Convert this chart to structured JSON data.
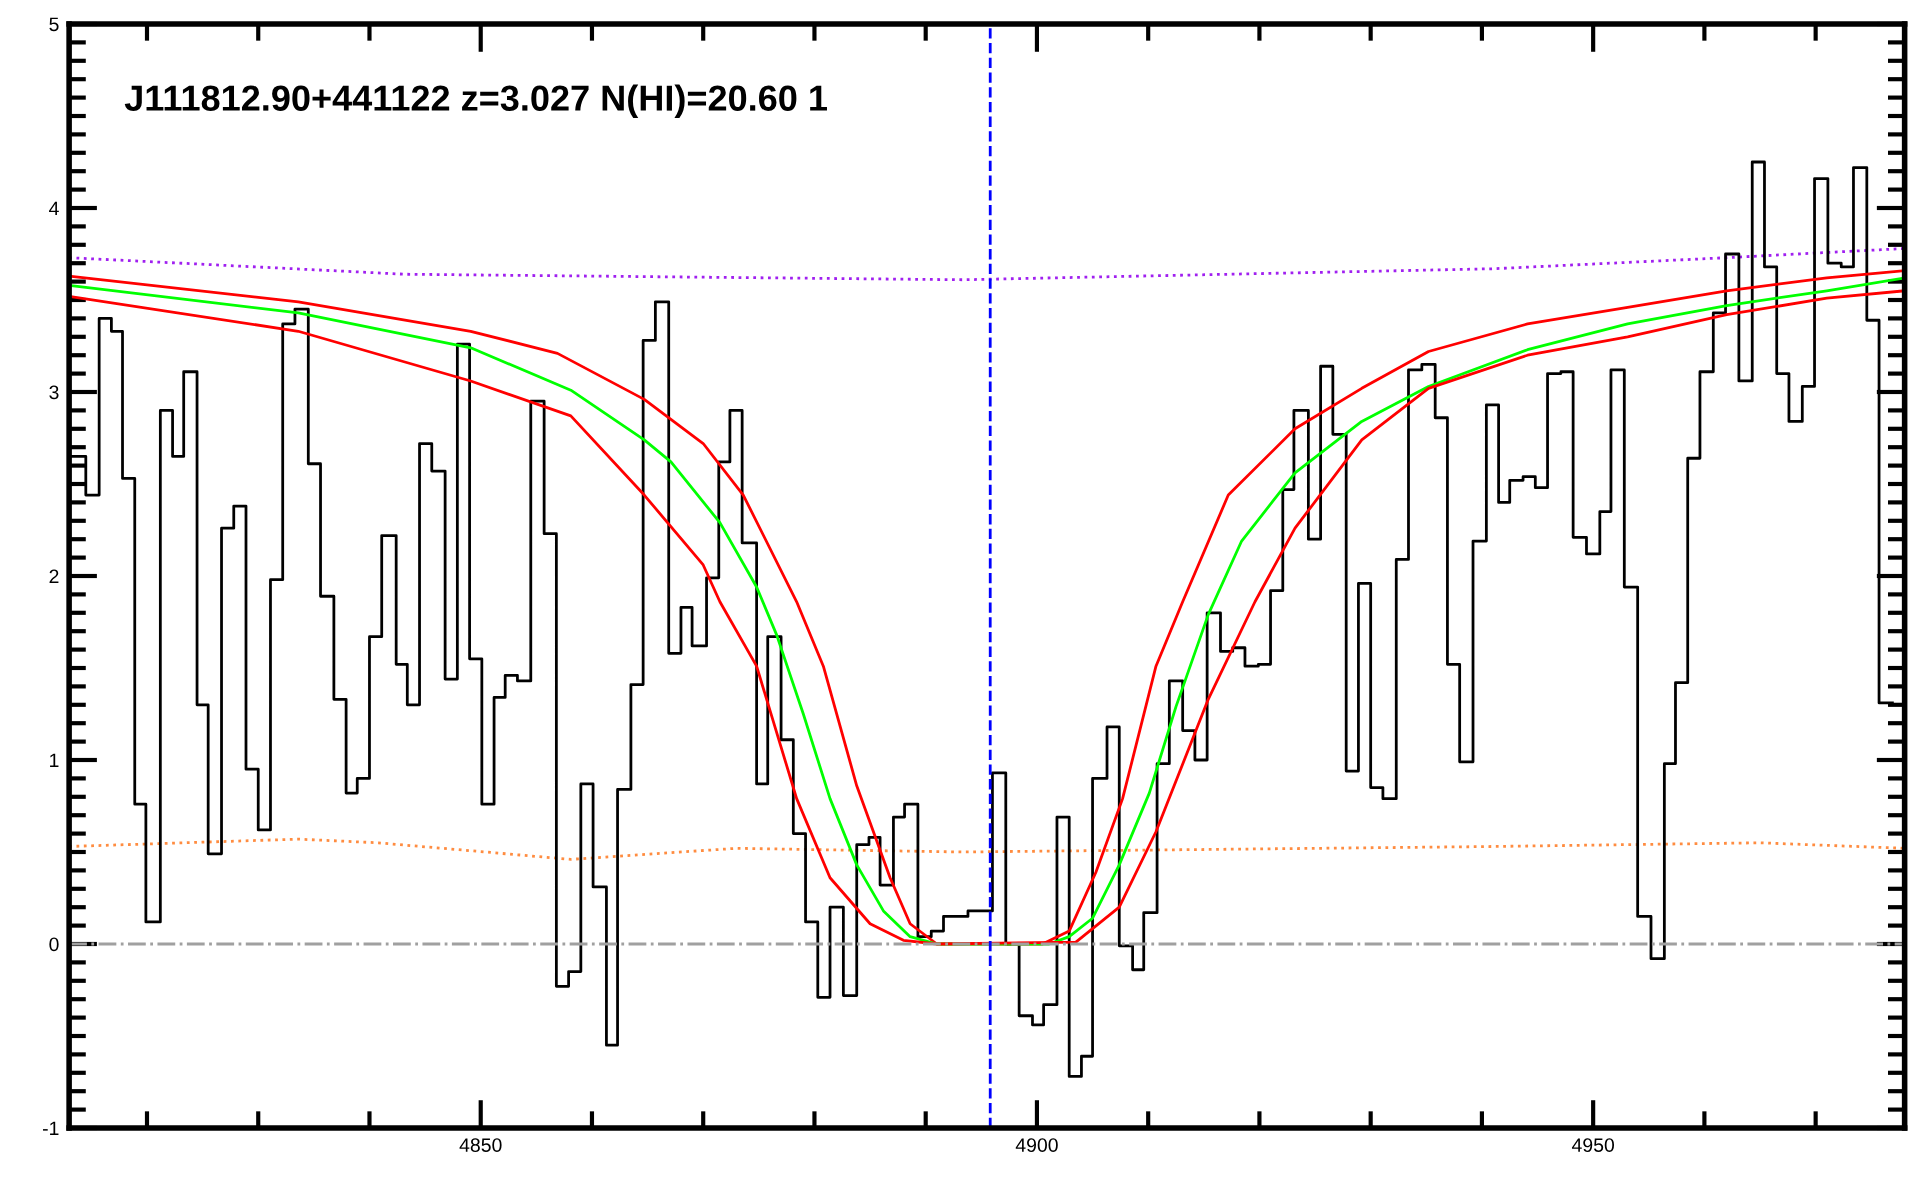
{
  "chart_data": {
    "type": "step",
    "title": "J111812.90+441122 z=3.027 N(HI)=20.60 1",
    "xlim": [
      4813,
      4978
    ],
    "xticks": [
      4850,
      4900,
      4950
    ],
    "ylim": [
      -1,
      5
    ],
    "yticks": [
      -1,
      0,
      1,
      2,
      3,
      4,
      5
    ],
    "grid": false,
    "legend": false,
    "tick_labels": "xy",
    "series": [
      {
        "type": "line",
        "color": "#a020f0",
        "line_style": "dotted",
        "x": [
          4813.0,
          4843.2,
          4893.3,
          4941.1,
          4962.0,
          4978.0
        ],
        "values": [
          3.73,
          3.64,
          3.61,
          3.67,
          3.73,
          3.78
        ]
      },
      {
        "type": "line",
        "color": "#ff8c40",
        "line_style": "dotted",
        "x": [
          4813.0,
          4833.6,
          4840.8,
          4858.1,
          4873.0,
          4893.3,
          4941.1,
          4965.0,
          4978.0
        ],
        "values": [
          0.53,
          0.57,
          0.55,
          0.46,
          0.52,
          0.5,
          0.53,
          0.55,
          0.52
        ]
      },
      {
        "color": "#000000",
        "line_style": "solid",
        "x": [
          4813.0,
          4814.5,
          4815.7,
          4816.8,
          4817.8,
          4818.9,
          4819.9,
          4821.2,
          4822.3,
          4823.3,
          4824.5,
          4825.5,
          4826.7,
          4827.8,
          4828.9,
          4830.0,
          4831.1,
          4832.2,
          4833.3,
          4834.5,
          4835.6,
          4836.8,
          4837.9,
          4838.9,
          4840.0,
          4841.1,
          4842.4,
          4843.4,
          4844.5,
          4845.6,
          4846.8,
          4847.9,
          4849.0,
          4850.1,
          4851.2,
          4852.2,
          4853.3,
          4854.5,
          4855.7,
          4856.8,
          4857.9,
          4859.0,
          4860.1,
          4861.3,
          4862.3,
          4863.5,
          4864.6,
          4865.7,
          4866.9,
          4868.0,
          4869.0,
          4870.3,
          4871.4,
          4872.4,
          4873.5,
          4874.8,
          4875.8,
          4877.0,
          4878.1,
          4879.2,
          4880.3,
          4881.4,
          4882.6,
          4883.8,
          4884.9,
          4885.9,
          4887.1,
          4888.1,
          4889.3,
          4890.5,
          4891.6,
          4893.8,
          4896.0,
          4897.2,
          4898.4,
          4899.6,
          4900.6,
          4901.8,
          4902.9,
          4904.0,
          4905.0,
          4906.3,
          4907.4,
          4908.6,
          4909.6,
          4910.8,
          4911.9,
          4913.1,
          4914.2,
          4915.3,
          4916.5,
          4917.6,
          4918.7,
          4919.9,
          4921.0,
          4922.1,
          4923.1,
          4924.4,
          4925.5,
          4926.6,
          4927.8,
          4928.9,
          4930.0,
          4931.1,
          4932.3,
          4933.4,
          4934.6,
          4935.8,
          4936.9,
          4938.0,
          4939.2,
          4940.4,
          4941.5,
          4942.5,
          4943.7,
          4944.8,
          4945.9,
          4947.1,
          4948.2,
          4949.4,
          4950.6,
          4951.6,
          4952.8,
          4954.0,
          4955.2,
          4956.4,
          4957.4,
          4958.5,
          4959.6,
          4960.8,
          4961.9,
          4963.1,
          4964.3,
          4965.4,
          4966.5,
          4967.6,
          4968.8,
          4969.9,
          4971.1,
          4972.3,
          4973.4,
          4974.6,
          4975.7,
          4976.9
        ],
        "values": [
          2.65,
          2.44,
          3.4,
          3.33,
          2.53,
          0.76,
          0.12,
          2.9,
          2.65,
          3.11,
          1.3,
          0.49,
          2.26,
          2.38,
          0.95,
          0.62,
          1.98,
          3.37,
          3.45,
          2.61,
          1.89,
          1.33,
          0.82,
          0.9,
          1.67,
          2.22,
          1.52,
          1.3,
          2.72,
          2.57,
          1.44,
          3.26,
          1.55,
          0.76,
          1.34,
          1.46,
          1.43,
          2.95,
          2.23,
          -0.23,
          -0.15,
          0.87,
          0.31,
          -0.55,
          0.84,
          1.41,
          3.28,
          3.49,
          1.58,
          1.83,
          1.62,
          1.99,
          2.62,
          2.9,
          2.18,
          0.87,
          1.67,
          1.11,
          0.6,
          0.12,
          -0.29,
          0.2,
          -0.28,
          0.54,
          0.58,
          0.32,
          0.69,
          0.76,
          0.04,
          0.07,
          0.15,
          0.18,
          0.93,
          0.0,
          -0.39,
          -0.44,
          -0.33,
          0.69,
          -0.72,
          -0.61,
          0.9,
          1.18,
          -0.01,
          -0.14,
          0.17,
          0.98,
          1.43,
          1.16,
          1.0,
          1.8,
          1.59,
          1.61,
          1.51,
          1.52,
          1.92,
          2.47,
          2.9,
          2.2,
          3.14,
          2.77,
          0.94,
          1.96,
          0.85,
          0.79,
          2.09,
          3.12,
          3.15,
          2.86,
          1.52,
          0.99,
          2.19,
          2.93,
          2.4,
          2.52,
          2.54,
          2.48,
          3.1,
          3.11,
          2.21,
          2.12,
          2.35,
          3.12,
          1.94,
          0.15,
          -0.08,
          0.98,
          1.42,
          2.64,
          3.11,
          3.43,
          3.75,
          3.06,
          4.25,
          3.68,
          3.1,
          2.84,
          3.03,
          4.16,
          3.7,
          3.68,
          4.22,
          3.39,
          1.31,
          1.31
        ]
      },
      {
        "type": "line",
        "color": "#ff0000",
        "line_style": "solid",
        "x": [
          4813.0,
          4833.6,
          4849.1,
          4856.9,
          4864.7,
          4870.0,
          4873.6,
          4878.4,
          4880.8,
          4883.8,
          4886.8,
          4888.6,
          4891.0,
          4900.5,
          4902.9,
          4905.3,
          4907.7,
          4910.7,
          4913.1,
          4917.2,
          4923.2,
          4929.2,
          4935.2,
          4944.1,
          4953.1,
          4962.0,
          4971.0,
          4978.0
        ],
        "values": [
          3.63,
          3.49,
          3.33,
          3.21,
          2.96,
          2.72,
          2.44,
          1.86,
          1.51,
          0.86,
          0.36,
          0.11,
          0.0,
          0.0,
          0.07,
          0.39,
          0.79,
          1.51,
          1.86,
          2.44,
          2.8,
          3.02,
          3.22,
          3.37,
          3.46,
          3.55,
          3.62,
          3.66
        ]
      },
      {
        "type": "line",
        "color": "#00ff00",
        "line_style": "solid",
        "x": [
          4813.0,
          4833.6,
          4849.1,
          4858.1,
          4864.7,
          4867.1,
          4871.5,
          4874.8,
          4876.6,
          4879.0,
          4881.4,
          4883.8,
          4886.2,
          4888.6,
          4891.0,
          4901.1,
          4902.9,
          4905.0,
          4907.4,
          4910.1,
          4912.5,
          4915.4,
          4918.4,
          4923.2,
          4929.2,
          4935.2,
          4944.1,
          4953.1,
          4962.0,
          4971.0,
          4978.0
        ],
        "values": [
          3.58,
          3.43,
          3.24,
          3.01,
          2.74,
          2.62,
          2.29,
          1.94,
          1.68,
          1.25,
          0.79,
          0.43,
          0.18,
          0.04,
          0.0,
          0.0,
          0.04,
          0.14,
          0.43,
          0.82,
          1.29,
          1.79,
          2.19,
          2.56,
          2.84,
          3.03,
          3.23,
          3.37,
          3.47,
          3.55,
          3.62
        ]
      },
      {
        "type": "line",
        "color": "#ff0000",
        "line_style": "solid",
        "x": [
          4813.0,
          4833.6,
          4849.1,
          4858.1,
          4864.7,
          4870.0,
          4871.5,
          4874.8,
          4878.4,
          4881.4,
          4885.0,
          4888.0,
          4891.0,
          4903.5,
          4907.4,
          4910.7,
          4915.4,
          4919.6,
          4923.2,
          4929.2,
          4935.2,
          4944.1,
          4953.1,
          4962.0,
          4971.0,
          4978.0
        ],
        "values": [
          3.52,
          3.33,
          3.06,
          2.87,
          2.44,
          2.06,
          1.86,
          1.51,
          0.79,
          0.36,
          0.11,
          0.02,
          0.0,
          0.01,
          0.2,
          0.61,
          1.33,
          1.86,
          2.26,
          2.74,
          3.02,
          3.2,
          3.3,
          3.42,
          3.51,
          3.55
        ]
      }
    ],
    "ref_lines": [
      {
        "axis": "y",
        "value": 0,
        "color": "#a0a0a0",
        "line_style": "dashdot"
      },
      {
        "axis": "x",
        "value": 4895.8,
        "color": "#0000ff",
        "line_style": "dashed"
      }
    ]
  }
}
